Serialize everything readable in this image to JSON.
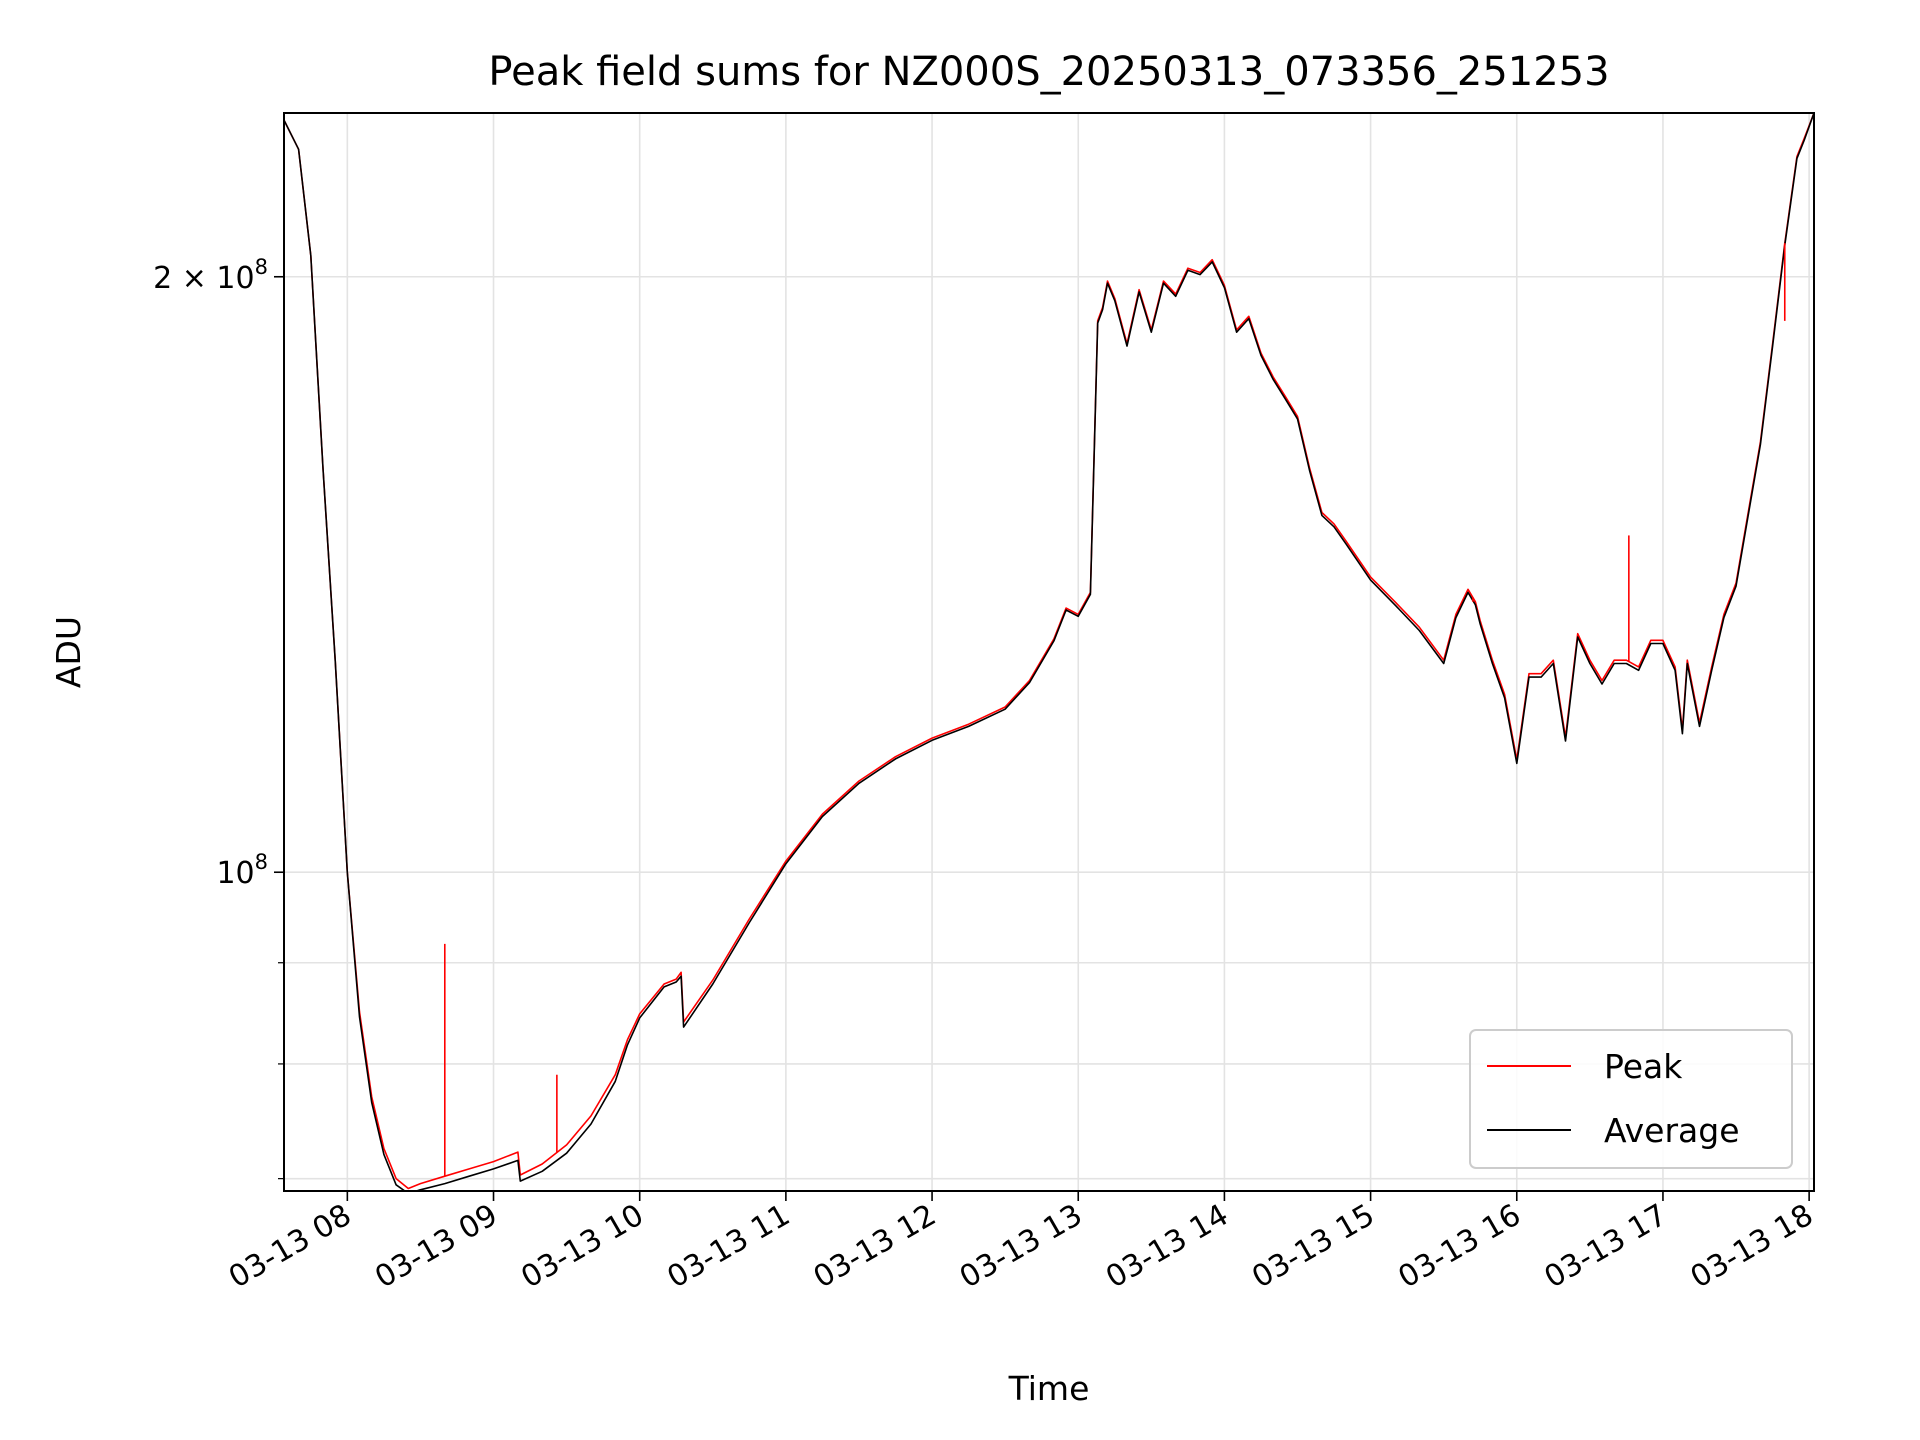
{
  "chart_data": {
    "type": "line",
    "title": "Peak field sums for NZ000S_20250313_073356_251253",
    "xlabel": "Time",
    "ylabel": "ADU",
    "y_scale": "log",
    "ylim": [
      69000000,
      242000000
    ],
    "xlim": [
      "2025-03-13 07:34",
      "2025-03-13 18:02"
    ],
    "grid": true,
    "legend_position": "lower-right",
    "x_ticks": [
      "03-13 08",
      "03-13 09",
      "03-13 10",
      "03-13 11",
      "03-13 12",
      "03-13 13",
      "03-13 14",
      "03-13 15",
      "03-13 16",
      "03-13 17",
      "03-13 18"
    ],
    "y_tick_labels": [
      {
        "value": 100000000,
        "mantissa": "",
        "exp": "8"
      },
      {
        "value": 200000000,
        "mantissa": "2",
        "exp": "8"
      }
    ],
    "y_minor_ticks": [
      70000000,
      80000000,
      90000000
    ],
    "x_times": [
      "07:34",
      "07:40",
      "07:45",
      "07:50",
      "07:55",
      "08:00",
      "08:05",
      "08:10",
      "08:15",
      "08:20",
      "08:25",
      "08:30",
      "08:40",
      "08:50",
      "09:00",
      "09:10",
      "09:11",
      "09:20",
      "09:30",
      "09:40",
      "09:50",
      "09:55",
      "10:00",
      "10:10",
      "10:15",
      "10:17",
      "10:18",
      "10:30",
      "10:45",
      "11:00",
      "11:15",
      "11:30",
      "11:45",
      "12:00",
      "12:15",
      "12:30",
      "12:40",
      "12:50",
      "12:55",
      "13:00",
      "13:05",
      "13:08",
      "13:10",
      "13:12",
      "13:15",
      "13:20",
      "13:25",
      "13:30",
      "13:35",
      "13:40",
      "13:45",
      "13:50",
      "13:55",
      "14:00",
      "14:05",
      "14:10",
      "14:15",
      "14:20",
      "14:25",
      "14:30",
      "14:35",
      "14:40",
      "14:45",
      "14:50",
      "15:00",
      "15:10",
      "15:20",
      "15:30",
      "15:35",
      "15:40",
      "15:43",
      "15:45",
      "15:50",
      "15:55",
      "16:00",
      "16:05",
      "16:10",
      "16:15",
      "16:20",
      "16:25",
      "16:30",
      "16:35",
      "16:40",
      "16:45",
      "16:50",
      "16:55",
      "17:00",
      "17:05",
      "17:08",
      "17:10",
      "17:15",
      "17:20",
      "17:25",
      "17:30",
      "17:35",
      "17:40",
      "17:45",
      "17:50",
      "17:55",
      "17:58",
      "18:02"
    ],
    "series": [
      {
        "name": "Peak",
        "color": "#ff0000",
        "values": [
          240000000,
          232000000,
          205000000,
          160000000,
          128000000,
          100000000,
          85000000,
          77000000,
          72500000,
          70000000,
          69200000,
          69600000,
          70200000,
          70800000,
          71400000,
          72200000,
          70300000,
          71200000,
          72800000,
          75300000,
          79000000,
          82300000,
          84800000,
          87800000,
          88300000,
          89000000,
          84000000,
          88200000,
          94700000,
          101300000,
          107000000,
          111200000,
          114400000,
          116900000,
          118800000,
          121200000,
          125000000,
          131200000,
          136000000,
          135000000,
          138500000,
          190000000,
          193000000,
          199000000,
          195000000,
          185000000,
          197000000,
          188000000,
          199000000,
          196000000,
          202000000,
          201000000,
          204000000,
          198000000,
          188000000,
          191000000,
          183000000,
          178000000,
          174000000,
          170000000,
          160000000,
          152000000,
          150000000,
          147000000,
          141000000,
          137000000,
          133000000,
          128000000,
          135000000,
          139000000,
          137000000,
          134000000,
          128000000,
          123000000,
          114000000,
          126000000,
          126000000,
          128000000,
          117000000,
          132000000,
          128000000,
          125000000,
          128000000,
          128000000,
          127000000,
          131000000,
          131000000,
          127000000,
          118000000,
          128000000,
          119000000,
          127000000,
          135000000,
          140000000,
          152000000,
          165000000,
          185000000,
          208000000,
          230000000,
          235000000,
          242000000
        ]
      },
      {
        "name": "Average",
        "color": "#000000",
        "values": [
          240000000,
          232000000,
          205000000,
          160000000,
          128000000,
          100000000,
          84500000,
          76500000,
          72000000,
          69500000,
          68800000,
          69100000,
          69600000,
          70200000,
          70800000,
          71500000,
          69800000,
          70600000,
          72100000,
          74600000,
          78400000,
          81800000,
          84400000,
          87500000,
          88000000,
          88600000,
          83500000,
          87800000,
          94300000,
          101000000,
          106700000,
          110900000,
          114100000,
          116600000,
          118500000,
          120900000,
          124700000,
          130900000,
          135700000,
          134700000,
          138200000,
          189500000,
          192500000,
          198500000,
          194500000,
          184500000,
          196500000,
          187500000,
          198500000,
          195500000,
          201500000,
          200500000,
          203500000,
          197500000,
          187500000,
          190500000,
          182500000,
          177500000,
          173500000,
          169500000,
          159500000,
          151500000,
          149500000,
          146500000,
          140500000,
          136500000,
          132500000,
          127500000,
          134500000,
          138500000,
          136500000,
          133500000,
          127500000,
          122500000,
          113500000,
          125500000,
          125500000,
          127500000,
          116500000,
          131500000,
          127500000,
          124500000,
          127500000,
          127500000,
          126500000,
          130500000,
          130500000,
          126500000,
          117500000,
          127500000,
          118500000,
          126500000,
          134500000,
          139500000,
          151500000,
          164500000,
          184500000,
          207500000,
          229500000,
          234500000,
          242000000
        ]
      }
    ],
    "spikes": [
      {
        "series": "Peak",
        "time": "08:40",
        "value": 92000000
      },
      {
        "series": "Peak",
        "time": "09:26",
        "value": 79000000
      },
      {
        "series": "Peak",
        "time": "15:42",
        "value": 137000000
      },
      {
        "series": "Peak",
        "time": "16:46",
        "value": 148000000
      },
      {
        "series": "Peak",
        "time": "17:50",
        "value": 190000000
      }
    ]
  }
}
